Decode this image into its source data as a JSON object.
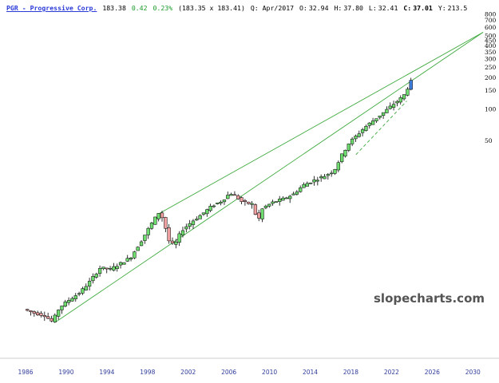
{
  "header": {
    "symbol": "PGR - Progressive Corp.",
    "last": "183.38",
    "change": "0.42",
    "change_pct": "0.23%",
    "bid_ask": "(183.35 x 183.41)",
    "period_label": "Q: Apr/2017",
    "open_label": "O:",
    "open": "32.94",
    "high_label": "H:",
    "high": "37.80",
    "low_label": "L:",
    "low": "32.41",
    "close_label": "C:",
    "close": "37.01",
    "y_label": "Y:",
    "y_value": "213.5"
  },
  "watermark": "slopecharts.com",
  "colors": {
    "up": "#6fdc6f",
    "down": "#f0a0a0",
    "last": "#3f7ddc",
    "trendline": "#3faa3f",
    "axis_text": "#2f3c9a"
  },
  "chart_data": {
    "type": "candlestick",
    "title": "PGR - Progressive Corp.",
    "scale": "log",
    "x_ticks": [
      "1986",
      "1990",
      "1994",
      "1998",
      "2002",
      "2006",
      "2010",
      "2014",
      "2018",
      "2022",
      "2026",
      "2030"
    ],
    "y_ticks": [
      "800",
      "700",
      "600",
      "500",
      "450",
      "400",
      "350",
      "300",
      "250",
      "200",
      "150",
      "100",
      "50"
    ],
    "xlim": [
      1986,
      2031
    ],
    "ylim": [
      0.5,
      800
    ],
    "points": [
      [
        1986.0,
        1.25
      ],
      [
        1987.0,
        1.15
      ],
      [
        1988.0,
        1.1
      ],
      [
        1988.8,
        0.95
      ],
      [
        1989.5,
        1.3
      ],
      [
        1990.5,
        1.55
      ],
      [
        1991.5,
        1.8
      ],
      [
        1992.5,
        2.3
      ],
      [
        1993.5,
        3.1
      ],
      [
        1994.5,
        3.0
      ],
      [
        1995.5,
        3.4
      ],
      [
        1996.5,
        3.9
      ],
      [
        1997.5,
        5.5
      ],
      [
        1998.5,
        8.0
      ],
      [
        1999.3,
        10.5
      ],
      [
        1999.7,
        9.0
      ],
      [
        2000.3,
        5.5
      ],
      [
        2000.8,
        5.0
      ],
      [
        2001.5,
        7.0
      ],
      [
        2002.5,
        8.5
      ],
      [
        2003.5,
        10.0
      ],
      [
        2004.5,
        12.0
      ],
      [
        2005.5,
        13.5
      ],
      [
        2006.3,
        16.0
      ],
      [
        2007.0,
        14.5
      ],
      [
        2007.5,
        13.0
      ],
      [
        2008.5,
        12.5
      ],
      [
        2009.0,
        8.5
      ],
      [
        2009.5,
        11.5
      ],
      [
        2010.5,
        13.0
      ],
      [
        2011.5,
        14.0
      ],
      [
        2012.5,
        15.5
      ],
      [
        2013.5,
        19.0
      ],
      [
        2014.5,
        21.0
      ],
      [
        2015.5,
        23.0
      ],
      [
        2016.5,
        26.0
      ],
      [
        2017.3,
        37.0
      ],
      [
        2018.0,
        48.0
      ],
      [
        2018.8,
        57.0
      ],
      [
        2019.5,
        67.0
      ],
      [
        2020.5,
        80.0
      ],
      [
        2021.5,
        95.0
      ],
      [
        2022.5,
        115.0
      ],
      [
        2023.0,
        125.0
      ],
      [
        2023.5,
        140.0
      ],
      [
        2024.0,
        183.38
      ]
    ],
    "trendlines": [
      {
        "from": [
          1999.0,
          10.0
        ],
        "to": [
          2031.0,
          540.0
        ]
      },
      {
        "from": [
          1989.0,
          0.95
        ],
        "to": [
          2031.0,
          540.0
        ]
      },
      {
        "from": [
          2018.5,
          37.0
        ],
        "to": [
          2023.5,
          120.0
        ],
        "dashed": true
      }
    ]
  }
}
